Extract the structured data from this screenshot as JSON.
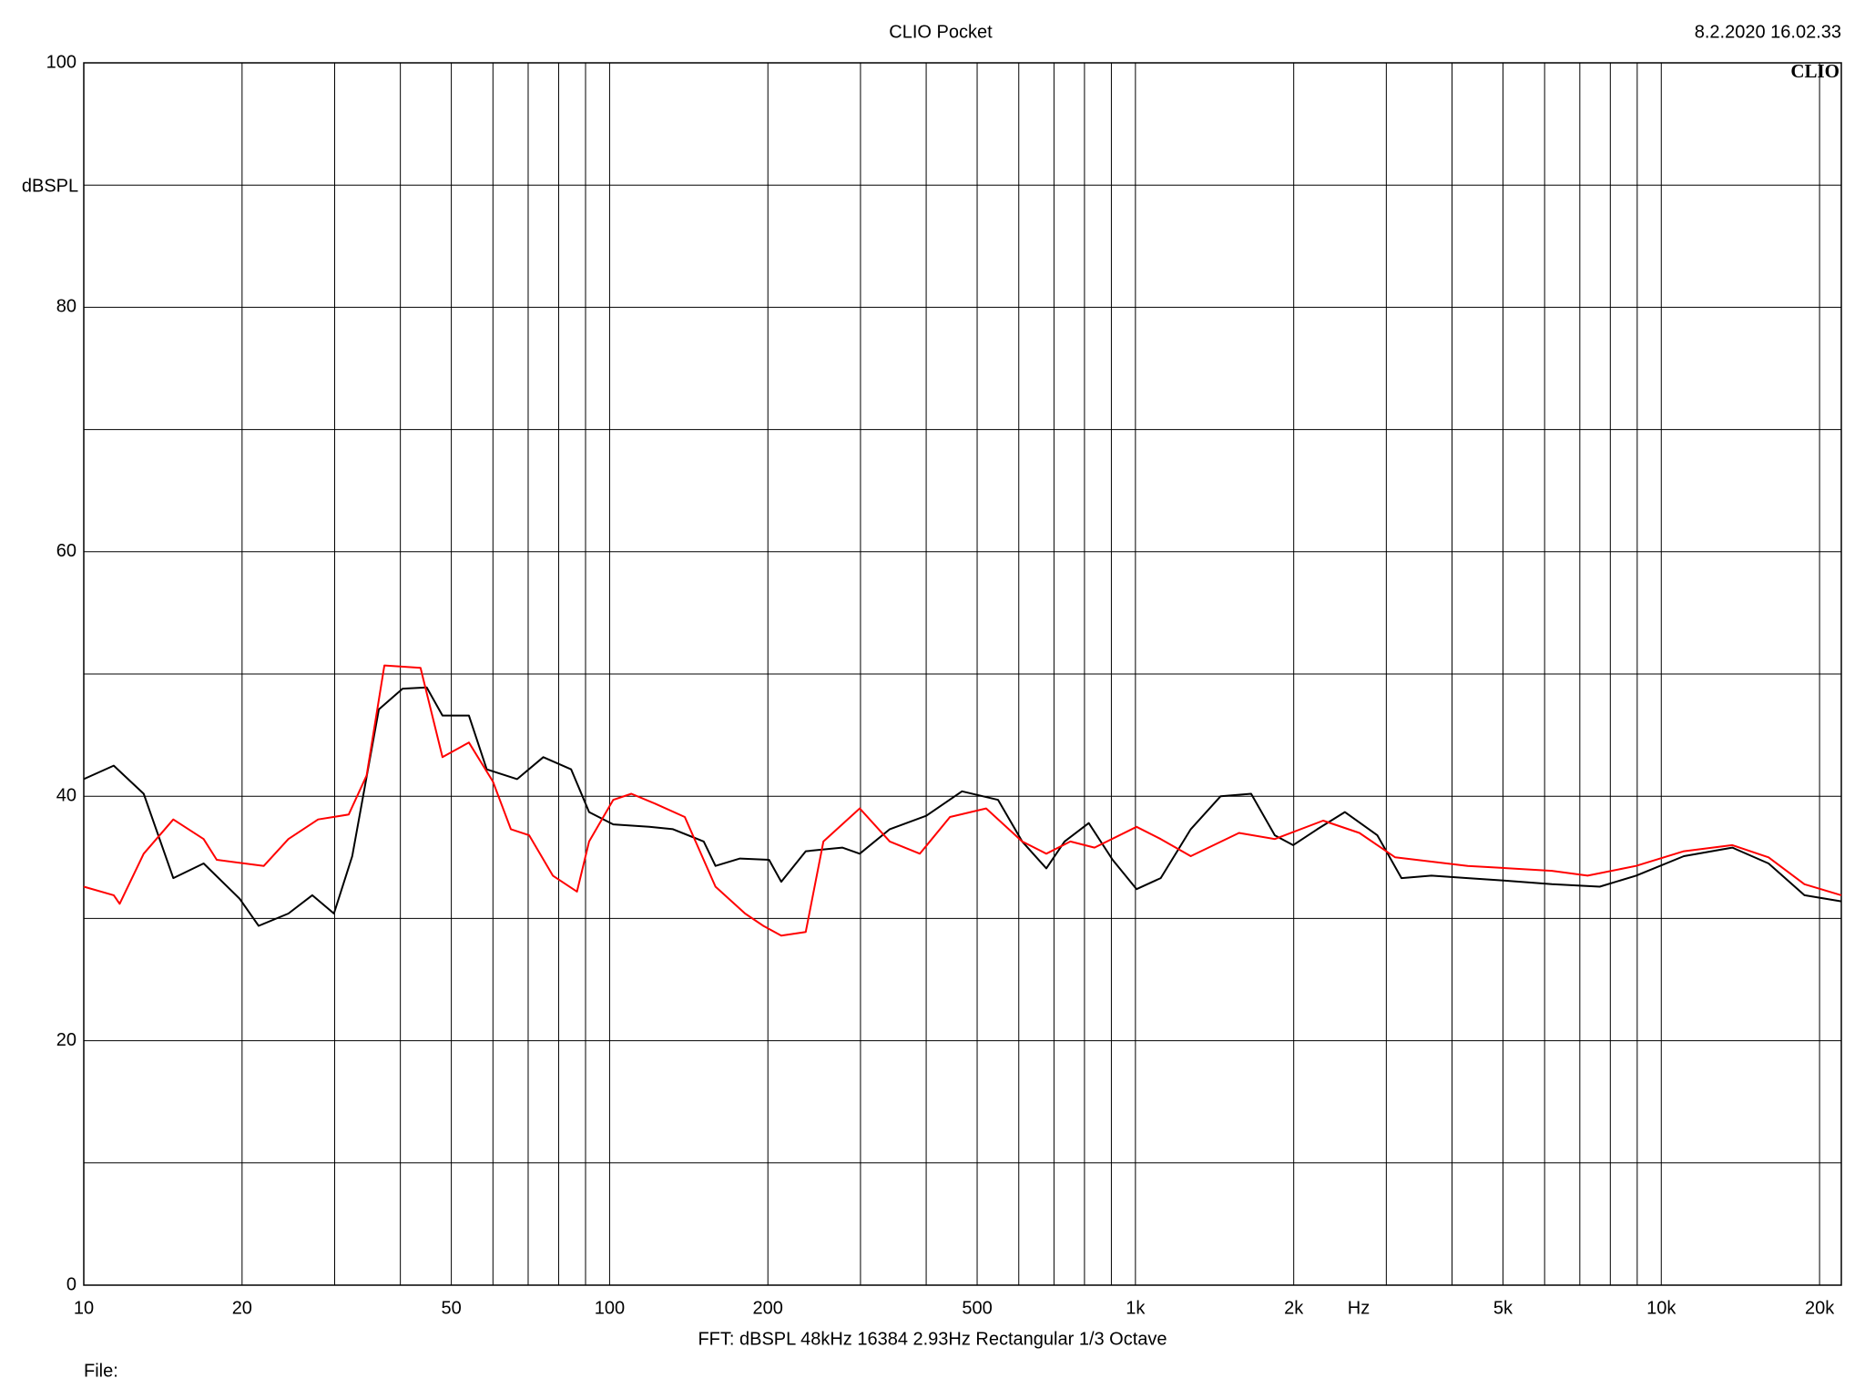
{
  "chart_data": {
    "type": "line",
    "title": "CLIO Pocket",
    "timestamp": "8.2.2020 16.02.33",
    "logo": "CLIO",
    "y_label": "dBSPL",
    "x_label": "Hz",
    "footer": "FFT:  dBSPL  48kHz  16384  2.93Hz  Rectangular  1/3 Octave",
    "file_label": "File:",
    "x_scale": "log",
    "grid": true,
    "xlim": [
      10,
      22000
    ],
    "ylim": [
      0,
      100
    ],
    "xticks": [
      10,
      20,
      50,
      100,
      200,
      500,
      {
        "value": 1000,
        "label": "1k"
      },
      {
        "value": 2000,
        "label": "2k"
      },
      {
        "value": 5000,
        "label": "5k"
      },
      {
        "value": 10000,
        "label": "10k"
      },
      {
        "value": 20000,
        "label": "20k"
      }
    ],
    "xminor": [
      30,
      40,
      60,
      70,
      80,
      90,
      300,
      400,
      600,
      700,
      800,
      900,
      3000,
      4000,
      6000,
      7000,
      8000,
      9000
    ],
    "yticks": [
      0,
      20,
      40,
      60,
      80,
      100
    ],
    "yminor": [
      10,
      30,
      50,
      70,
      90
    ],
    "series": [
      {
        "color": "#000000",
        "x": [
          10,
          11.4,
          13.0,
          14.8,
          16.9,
          19.8,
          21.5,
          24.5,
          27.2,
          29.9,
          32.4,
          36.4,
          40.4,
          44.9,
          48.1,
          54.0,
          58.4,
          66.7,
          74.8,
          84.5,
          91.4,
          101.6,
          119,
          132,
          151,
          159,
          177,
          201,
          212,
          236,
          277,
          299,
          341,
          400,
          468,
          548,
          609,
          677,
          733,
          815,
          905,
          1005,
          1117,
          1274,
          1452,
          1660,
          1841,
          1995,
          2218,
          2502,
          2884,
          3206,
          3656,
          4285,
          5012,
          6194,
          7638,
          8954,
          11040,
          13650,
          16000,
          18720,
          22000
        ],
        "values": [
          41.4,
          42.5,
          40.2,
          33.3,
          34.5,
          31.6,
          29.4,
          30.4,
          31.9,
          30.4,
          35.1,
          47.1,
          48.8,
          48.9,
          46.6,
          46.6,
          42.2,
          41.4,
          43.2,
          42.2,
          38.7,
          37.7,
          37.5,
          37.3,
          36.3,
          34.3,
          34.9,
          34.8,
          33.0,
          35.5,
          35.8,
          35.3,
          37.3,
          38.4,
          40.4,
          39.7,
          36.3,
          34.1,
          36.3,
          37.8,
          34.8,
          32.4,
          33.3,
          37.3,
          40.0,
          40.2,
          36.8,
          36.0,
          37.3,
          38.7,
          36.8,
          33.3,
          33.5,
          33.3,
          33.1,
          32.8,
          32.6,
          33.5,
          35.1,
          35.8,
          34.5,
          31.9,
          31.4
        ]
      },
      {
        "color": "#ff0000",
        "x": [
          10,
          11.4,
          11.7,
          13.0,
          14.8,
          16.9,
          17.9,
          22.0,
          24.5,
          27.9,
          31.9,
          34.5,
          37.3,
          43.7,
          48.1,
          54.0,
          60.0,
          64.9,
          70.3,
          78.0,
          86.7,
          91.4,
          101.6,
          110,
          122,
          139,
          159,
          181,
          196,
          212,
          236,
          255,
          299,
          341,
          389,
          444,
          520,
          609,
          677,
          752,
          836,
          1005,
          1117,
          1274,
          1574,
          1841,
          2275,
          2667,
          3119,
          4285,
          6194,
          7244,
          8954,
          11040,
          13650,
          16000,
          18720,
          22000
        ],
        "values": [
          32.6,
          31.9,
          31.2,
          35.3,
          38.1,
          36.5,
          34.8,
          34.3,
          36.5,
          38.1,
          38.5,
          41.7,
          50.7,
          50.5,
          43.2,
          44.4,
          41.2,
          37.3,
          36.8,
          33.5,
          32.2,
          36.3,
          39.7,
          40.2,
          39.4,
          38.3,
          32.6,
          30.4,
          29.4,
          28.6,
          28.9,
          36.3,
          39.0,
          36.3,
          35.3,
          38.3,
          39.0,
          36.3,
          35.3,
          36.3,
          35.8,
          37.5,
          36.5,
          35.1,
          37.0,
          36.5,
          38.0,
          37.0,
          35.0,
          34.3,
          33.9,
          33.5,
          34.3,
          35.5,
          36.0,
          35.0,
          32.8,
          31.9
        ]
      }
    ]
  }
}
